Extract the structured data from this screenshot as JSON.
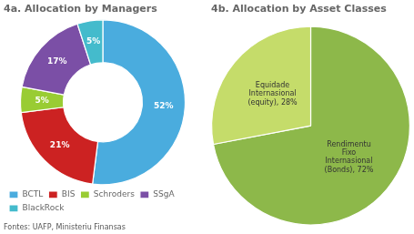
{
  "chart_data": [
    {
      "type": "donut",
      "title": "4a. Allocation by Managers",
      "categories": [
        "BCTL",
        "BIS",
        "Schroders",
        "SSgA",
        "BlackRock"
      ],
      "values": [
        52,
        21,
        5,
        17,
        5
      ],
      "value_labels": [
        "52%",
        "21%",
        "5%",
        "17%",
        "5%"
      ],
      "colors": [
        "#4aacde",
        "#cc2222",
        "#99cc33",
        "#7b4fa6",
        "#44bbcc"
      ],
      "data_labels": true,
      "legend": "lower left",
      "annotations": [
        "Fontes: UAFP, Ministeriu Finansas"
      ]
    },
    {
      "type": "pie",
      "title": "4b. Allocation by Asset Classes",
      "values": [
        72,
        28
      ],
      "value_labels": [
        "Rendimentu\nFixo\nInternasional\n(Bonds), 72%",
        "Equidade\nInternasional\n(equity), 28%"
      ],
      "colors": [
        "#8db84a",
        "#c5dc6a"
      ],
      "data_labels": true
    }
  ]
}
